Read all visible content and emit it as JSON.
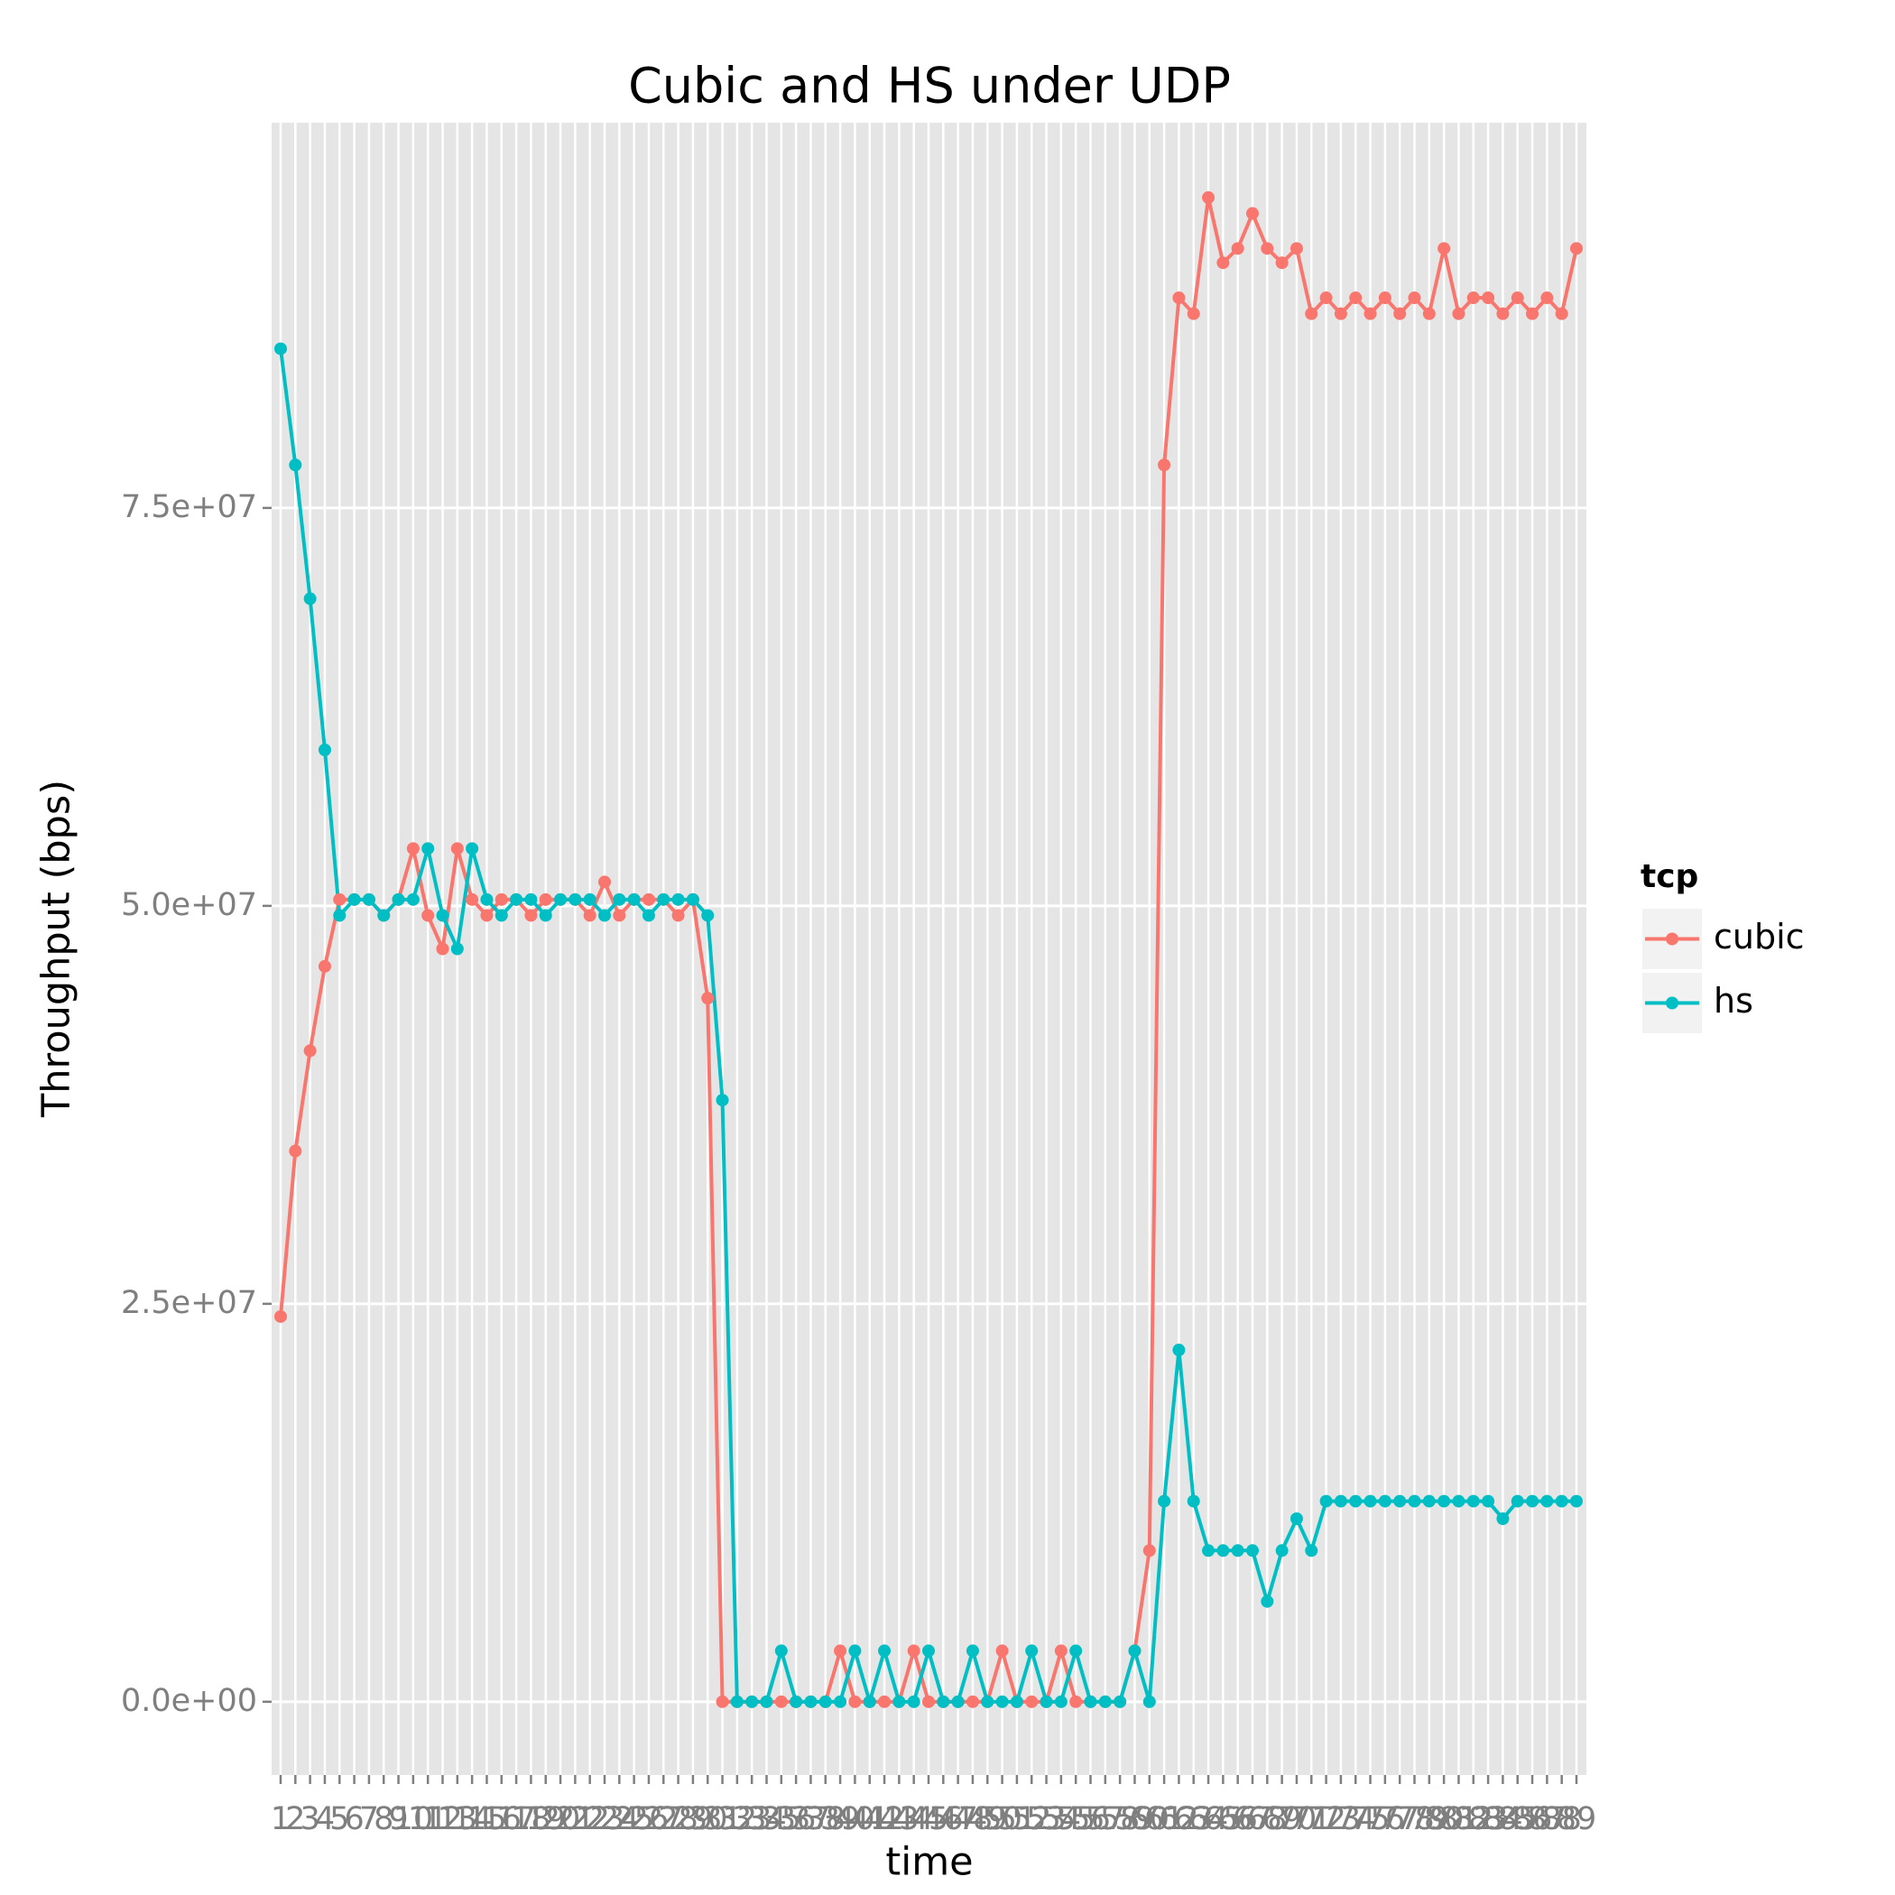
{
  "chart_data": {
    "type": "line",
    "title": "Cubic and HS under UDP",
    "x_label": "time",
    "y_label": "Throughput (bps)",
    "legend_title": "tcp",
    "legend": "right",
    "grid": true,
    "categories": [
      "1",
      "2",
      "3",
      "4",
      "5",
      "6",
      "7",
      "8",
      "9",
      "10",
      "11",
      "12",
      "13",
      "14",
      "15",
      "16",
      "17",
      "18",
      "19",
      "20",
      "21",
      "22",
      "23",
      "24",
      "25",
      "26",
      "27",
      "28",
      "29",
      "30",
      "31",
      "32",
      "33",
      "34",
      "35",
      "36",
      "37",
      "38",
      "39",
      "40",
      "41",
      "42",
      "43",
      "44",
      "45",
      "46",
      "47",
      "48",
      "49",
      "50",
      "51",
      "52",
      "53",
      "54",
      "55",
      "56",
      "57",
      "58",
      "59",
      "60",
      "61",
      "62",
      "63",
      "64",
      "65",
      "66",
      "67",
      "68",
      "69",
      "70",
      "71",
      "72",
      "73",
      "74",
      "75",
      "76",
      "77",
      "78",
      "79",
      "80",
      "81",
      "82",
      "83",
      "84",
      "85",
      "86",
      "87",
      "88",
      "89"
    ],
    "ylim": [
      -4600000,
      99200000
    ],
    "yticks": [
      {
        "value": 0,
        "label": "0.0e+00"
      },
      {
        "value": 25000000,
        "label": "2.5e+07"
      },
      {
        "value": 50000000,
        "label": "5.0e+07"
      },
      {
        "value": 75000000,
        "label": "7.5e+07"
      }
    ],
    "series": [
      {
        "name": "cubic",
        "color": "#F8766D",
        "values": [
          24200000,
          34600000,
          40900000,
          46200000,
          50400000,
          50400000,
          50400000,
          49400000,
          50400000,
          53600000,
          49400000,
          47300000,
          53600000,
          50400000,
          49400000,
          50400000,
          50400000,
          49400000,
          50400000,
          50400000,
          50400000,
          49400000,
          51500000,
          49400000,
          50400000,
          50400000,
          50400000,
          49400000,
          50400000,
          44200000,
          0,
          0,
          0,
          0,
          0,
          0,
          0,
          0,
          3200000,
          0,
          0,
          0,
          0,
          3200000,
          0,
          0,
          0,
          0,
          0,
          3200000,
          0,
          0,
          0,
          3200000,
          0,
          0,
          0,
          0,
          3200000,
          9500000,
          77700000,
          88200000,
          87200000,
          94500000,
          90400000,
          91300000,
          93500000,
          91300000,
          90400000,
          91300000,
          87200000,
          88200000,
          87200000,
          88200000,
          87200000,
          88200000,
          87200000,
          88200000,
          87200000,
          91300000,
          87200000,
          88200000,
          88200000,
          87200000,
          88200000,
          87200000,
          88200000,
          87200000,
          91300000
        ]
      },
      {
        "name": "hs",
        "color": "#00BFC4",
        "values": [
          85000000,
          77700000,
          69300000,
          59800000,
          49400000,
          50400000,
          50400000,
          49400000,
          50400000,
          50400000,
          53600000,
          49400000,
          47300000,
          53600000,
          50400000,
          49400000,
          50400000,
          50400000,
          49400000,
          50400000,
          50400000,
          50400000,
          49400000,
          50400000,
          50400000,
          49400000,
          50400000,
          50400000,
          50400000,
          49400000,
          37800000,
          0,
          0,
          0,
          3200000,
          0,
          0,
          0,
          0,
          3200000,
          0,
          3200000,
          0,
          0,
          3200000,
          0,
          0,
          3200000,
          0,
          0,
          0,
          3200000,
          0,
          0,
          3200000,
          0,
          0,
          0,
          3200000,
          0,
          12600000,
          22100000,
          12600000,
          9500000,
          9500000,
          9500000,
          9500000,
          6300000,
          9500000,
          11500000,
          9500000,
          12600000,
          12600000,
          12600000,
          12600000,
          12600000,
          12600000,
          12600000,
          12600000,
          12600000,
          12600000,
          12600000,
          12600000,
          11500000,
          12600000,
          12600000,
          12600000,
          12600000,
          12600000
        ]
      }
    ]
  }
}
